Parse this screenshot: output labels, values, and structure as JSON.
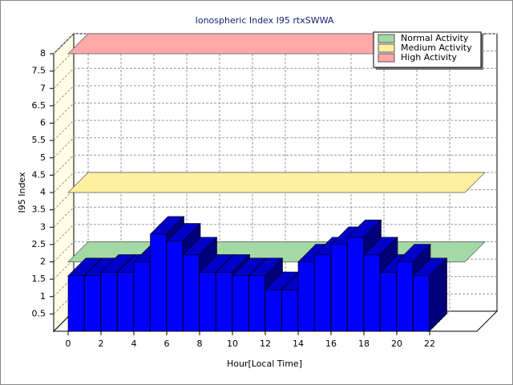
{
  "chart_data": {
    "type": "bar3d",
    "title": "Ionospheric Index I95 rtxSWWA",
    "x_label": "Hour[Local Time]",
    "y_label": "I95 Index",
    "x": [
      0,
      1,
      2,
      3,
      4,
      5,
      6,
      7,
      8,
      9,
      10,
      11,
      12,
      13,
      14,
      15,
      16,
      17,
      18,
      19,
      20,
      21
    ],
    "values": [
      1.6,
      1.6,
      1.7,
      1.7,
      2.0,
      2.8,
      2.6,
      2.2,
      1.7,
      1.7,
      1.6,
      1.6,
      1.2,
      1.2,
      2.0,
      2.2,
      2.5,
      2.7,
      2.2,
      1.7,
      2.0,
      1.6
    ],
    "color": "#0000ff",
    "xticks": [
      0,
      2,
      4,
      6,
      8,
      10,
      12,
      14,
      16,
      18,
      20,
      22
    ],
    "ylim": [
      0,
      8
    ],
    "yticks": [
      0.5,
      1,
      1.5,
      2,
      2.5,
      3,
      3.5,
      4,
      4.5,
      5,
      5.5,
      6,
      6.5,
      7,
      7.5,
      8
    ],
    "grid": true,
    "legend": "top-right",
    "bands": [
      {
        "name": "Normal Activity",
        "color": "#a3d9a5",
        "value": 2
      },
      {
        "name": "Medium Activity",
        "color": "#fff0a0",
        "value": 4
      },
      {
        "name": "High Activity",
        "color": "#ffa8a8",
        "value": 8
      }
    ]
  }
}
